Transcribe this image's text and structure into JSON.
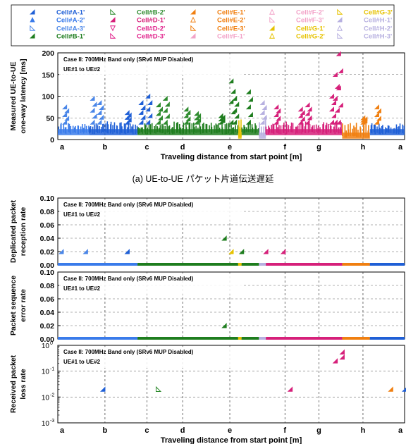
{
  "legend": {
    "entries": [
      {
        "label": "Cell#A-1'",
        "color": "#1f5fd6",
        "marker": "tri-ur-filled"
      },
      {
        "label": "Cell#A-2'",
        "color": "#3a7bea",
        "marker": "tri-up-filled"
      },
      {
        "label": "Cell#A-3'",
        "color": "#4a86e8",
        "marker": "tri-ll-open"
      },
      {
        "label": "Cell#B-1'",
        "color": "#1e7d1e",
        "marker": "tri-ur-filled"
      },
      {
        "label": "Cell#B-2'",
        "color": "#2e8b2e",
        "marker": "tri-ll-open"
      },
      {
        "label": "Cell#D-1'",
        "color": "#d6207a",
        "marker": "tri-ur-filled"
      },
      {
        "label": "Cell#D-2'",
        "color": "#e0208a",
        "marker": "tri-down-open"
      },
      {
        "label": "Cell#D-3'",
        "color": "#e0208a",
        "marker": "tri-ll-open"
      },
      {
        "label": "Cell#E-1'",
        "color": "#f07f10",
        "marker": "tri-ur-filled"
      },
      {
        "label": "Cell#E-2'",
        "color": "#f07f10",
        "marker": "tri-up-open"
      },
      {
        "label": "Cell#E-3'",
        "color": "#f07f10",
        "marker": "tri-ll-open"
      },
      {
        "label": "Cell#F-1'",
        "color": "#f2a3c8",
        "marker": "tri-ur-filled"
      },
      {
        "label": "Cell#F-2'",
        "color": "#f2a3c8",
        "marker": "tri-up-open"
      },
      {
        "label": "Cell#F-3'",
        "color": "#f2a3c8",
        "marker": "tri-ll-open"
      },
      {
        "label": "Cell#G-1'",
        "color": "#e6c200",
        "marker": "tri-ur-filled"
      },
      {
        "label": "Cell#G-2'",
        "color": "#e6c200",
        "marker": "tri-up-open"
      },
      {
        "label": "Cell#G-3'",
        "color": "#e6c200",
        "marker": "tri-ll-open"
      },
      {
        "label": "Cell#H-1'",
        "color": "#b7b0e0",
        "marker": "tri-ur-filled"
      },
      {
        "label": "Cell#H-2'",
        "color": "#b7b0e0",
        "marker": "tri-up-open"
      },
      {
        "label": "Cell#H-3'",
        "color": "#b7b0e0",
        "marker": "tri-ll-open"
      }
    ]
  },
  "chart_data": [
    {
      "type": "scatter",
      "annotation": [
        "Case II: 700MHz Band only (SRv6 MUP Disabled)",
        "UE#1 to UE#2"
      ],
      "ylabel": [
        "Measured UE-to-UE",
        "one-way latency [ms]"
      ],
      "xlabel": "Traveling distance from start point [m]",
      "x_tick_labels": [
        "a",
        "b",
        "c",
        "d",
        "e",
        "f",
        "g",
        "h",
        "a"
      ],
      "ylim": [
        0,
        200
      ],
      "y_ticks": [
        "0",
        "50",
        "100",
        "150",
        "200"
      ],
      "grid": "dashed vertical at landmarks and horizontal",
      "caption": "(a) UE-to-UE パケット片道伝送遅延",
      "bands": [
        {
          "from": 0.0,
          "to": 0.09,
          "color": "#3a7bea",
          "base": 18,
          "top": 40
        },
        {
          "from": 0.09,
          "to": 0.23,
          "color": "#1f5fd6",
          "base": 18,
          "top": 42
        },
        {
          "from": 0.23,
          "to": 0.52,
          "color": "#1e7d1e",
          "base": 18,
          "top": 42
        },
        {
          "from": 0.52,
          "to": 0.53,
          "color": "#e6c200",
          "base": 10,
          "top": 50
        },
        {
          "from": 0.53,
          "to": 0.58,
          "color": "#1e7d1e",
          "base": 18,
          "top": 40
        },
        {
          "from": 0.58,
          "to": 0.6,
          "color": "#b7b0e0",
          "base": 10,
          "top": 60
        },
        {
          "from": 0.6,
          "to": 0.82,
          "color": "#d6207a",
          "base": 18,
          "top": 42
        },
        {
          "from": 0.82,
          "to": 0.9,
          "color": "#f07f10",
          "base": 10,
          "top": 40
        },
        {
          "from": 0.9,
          "to": 1.0,
          "color": "#1f5fd6",
          "base": 18,
          "top": 38
        }
      ],
      "spikes": [
        {
          "x": 0.02,
          "y": 75,
          "color": "#4a86e8"
        },
        {
          "x": 0.1,
          "y": 95,
          "color": "#4a86e8"
        },
        {
          "x": 0.12,
          "y": 85,
          "color": "#4a86e8"
        },
        {
          "x": 0.2,
          "y": 62,
          "color": "#1f5fd6"
        },
        {
          "x": 0.24,
          "y": 85,
          "color": "#1f5fd6"
        },
        {
          "x": 0.26,
          "y": 100,
          "color": "#1f5fd6"
        },
        {
          "x": 0.29,
          "y": 80,
          "color": "#2e8b2e"
        },
        {
          "x": 0.31,
          "y": 95,
          "color": "#2e8b2e"
        },
        {
          "x": 0.37,
          "y": 70,
          "color": "#2e8b2e"
        },
        {
          "x": 0.4,
          "y": 60,
          "color": "#2e8b2e"
        },
        {
          "x": 0.47,
          "y": 55,
          "color": "#1e7d1e"
        },
        {
          "x": 0.5,
          "y": 135,
          "color": "#1e7d1e"
        },
        {
          "x": 0.51,
          "y": 95,
          "color": "#1e7d1e"
        },
        {
          "x": 0.55,
          "y": 110,
          "color": "#1e7d1e"
        },
        {
          "x": 0.59,
          "y": 85,
          "color": "#b7b0e0"
        },
        {
          "x": 0.63,
          "y": 75,
          "color": "#d6207a"
        },
        {
          "x": 0.7,
          "y": 70,
          "color": "#d6207a"
        },
        {
          "x": 0.72,
          "y": 80,
          "color": "#d6207a"
        },
        {
          "x": 0.79,
          "y": 100,
          "color": "#d6207a"
        },
        {
          "x": 0.8,
          "y": 150,
          "color": "#d6207a"
        },
        {
          "x": 0.81,
          "y": 198,
          "color": "#d6207a"
        },
        {
          "x": 0.88,
          "y": 50,
          "color": "#f07f10"
        },
        {
          "x": 0.92,
          "y": 75,
          "color": "#f07f10"
        }
      ]
    },
    {
      "type": "scatter",
      "annotation": [
        "Case II: 700MHz Band only (SRv6 MUP Disabled)",
        "UE#1 to UE#2"
      ],
      "ylabel": [
        "Deplicated packet",
        "reception rate"
      ],
      "ylim": [
        0,
        0.1
      ],
      "y_ticks": [
        "0.00",
        "0.02",
        "0.04",
        "0.06",
        "0.08",
        "0.10"
      ],
      "baseline_segments": [
        {
          "from": 0.0,
          "to": 0.23,
          "color": "#3a7bea"
        },
        {
          "from": 0.23,
          "to": 0.52,
          "color": "#1e7d1e"
        },
        {
          "from": 0.52,
          "to": 0.53,
          "color": "#e6c200"
        },
        {
          "from": 0.53,
          "to": 0.58,
          "color": "#1e7d1e"
        },
        {
          "from": 0.58,
          "to": 0.6,
          "color": "#b7b0e0"
        },
        {
          "from": 0.6,
          "to": 0.82,
          "color": "#d6207a"
        },
        {
          "from": 0.82,
          "to": 0.9,
          "color": "#f07f10"
        },
        {
          "from": 0.9,
          "to": 1.0,
          "color": "#1f5fd6"
        }
      ],
      "points": [
        {
          "x": 0.01,
          "y": 0.02,
          "color": "#4a86e8"
        },
        {
          "x": 0.08,
          "y": 0.02,
          "color": "#4a86e8"
        },
        {
          "x": 0.2,
          "y": 0.02,
          "color": "#1f5fd6"
        },
        {
          "x": 0.48,
          "y": 0.04,
          "color": "#1e7d1e"
        },
        {
          "x": 0.5,
          "y": 0.02,
          "color": "#e6c200"
        },
        {
          "x": 0.53,
          "y": 0.02,
          "color": "#1e7d1e"
        },
        {
          "x": 0.6,
          "y": 0.02,
          "color": "#d6207a"
        },
        {
          "x": 0.65,
          "y": 0.02,
          "color": "#d6207a"
        }
      ]
    },
    {
      "type": "scatter",
      "annotation": [
        "Case II: 700MHz Band only (SRv6 MUP Disabled)",
        "UE#1 to UE#2"
      ],
      "ylabel": [
        "Packet sequence",
        "error rate"
      ],
      "ylim": [
        0,
        0.1
      ],
      "y_ticks": [
        "0.00",
        "0.02",
        "0.04",
        "0.06",
        "0.08",
        "0.10"
      ],
      "baseline_segments": [
        {
          "from": 0.0,
          "to": 0.23,
          "color": "#3a7bea"
        },
        {
          "from": 0.23,
          "to": 0.52,
          "color": "#1e7d1e"
        },
        {
          "from": 0.52,
          "to": 0.53,
          "color": "#e6c200"
        },
        {
          "from": 0.53,
          "to": 0.58,
          "color": "#1e7d1e"
        },
        {
          "from": 0.58,
          "to": 0.6,
          "color": "#b7b0e0"
        },
        {
          "from": 0.6,
          "to": 0.82,
          "color": "#d6207a"
        },
        {
          "from": 0.82,
          "to": 0.9,
          "color": "#f07f10"
        },
        {
          "from": 0.9,
          "to": 1.0,
          "color": "#1f5fd6"
        }
      ],
      "points": [
        {
          "x": 0.48,
          "y": 0.02,
          "color": "#1e7d1e"
        }
      ]
    },
    {
      "type": "scatter",
      "annotation": [
        "Case II: 700MHz Band only (SRv6 MUP Disabled)",
        "UE#1 to UE#2"
      ],
      "ylabel": [
        "Received packet",
        "loss rate"
      ],
      "xlabel": "Traveling distance from start point [m]",
      "x_tick_labels": [
        "a",
        "b",
        "c",
        "d",
        "e",
        "f",
        "g",
        "h",
        "a"
      ],
      "yscale": "log",
      "ylim": [
        0.001,
        1
      ],
      "points": [
        {
          "x": 0.13,
          "y": 0.02,
          "color": "#1f5fd6"
        },
        {
          "x": 0.29,
          "y": 0.02,
          "color": "#2e8b2e"
        },
        {
          "x": 0.67,
          "y": 0.02,
          "color": "#d6207a"
        },
        {
          "x": 0.8,
          "y": 0.25,
          "color": "#d6207a"
        },
        {
          "x": 0.82,
          "y": 0.35,
          "color": "#d6207a"
        },
        {
          "x": 0.82,
          "y": 0.55,
          "color": "#d6207a"
        },
        {
          "x": 0.96,
          "y": 0.02,
          "color": "#f07f10"
        },
        {
          "x": 1.0,
          "y": 0.02,
          "color": "#1f5fd6"
        }
      ]
    }
  ]
}
